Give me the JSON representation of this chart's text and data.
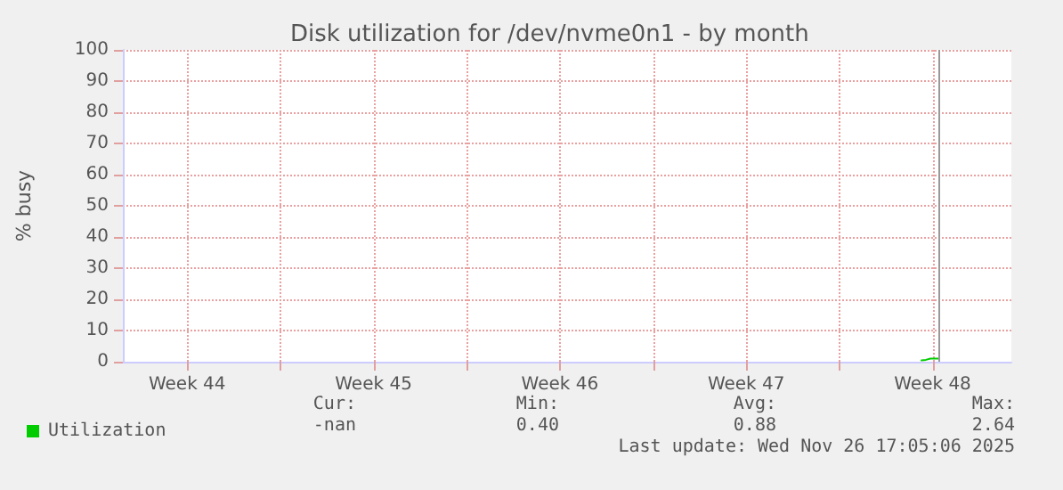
{
  "chart_data": {
    "type": "line",
    "title": "Disk utilization for /dev/nvme0n1 - by month",
    "ylabel": "% busy",
    "x": [
      "2025-11-27T02:00",
      "2025-11-27T06:00",
      "2025-11-27T10:00",
      "2025-11-27T14:00",
      "2025-11-27T17:00"
    ],
    "series": [
      {
        "name": "Utilization",
        "color": "#00cc00",
        "values": [
          0.4,
          0.6,
          1.0,
          1.0,
          1.0
        ]
      }
    ],
    "xlim": [
      "2025-10-28T02:00",
      "2025-11-30T11:00"
    ],
    "xticks": [
      {
        "value": "2025-10-30T12:00",
        "label": "Week 44"
      },
      {
        "value": "2025-11-03",
        "label": null
      },
      {
        "value": "2025-11-06T12:00",
        "label": "Week 45"
      },
      {
        "value": "2025-11-10",
        "label": null
      },
      {
        "value": "2025-11-13T12:00",
        "label": "Week 46"
      },
      {
        "value": "2025-11-17",
        "label": null
      },
      {
        "value": "2025-11-20T12:00",
        "label": "Week 47"
      },
      {
        "value": "2025-11-24",
        "label": null
      },
      {
        "value": "2025-11-27T12:00",
        "label": "Week 48"
      }
    ],
    "ylim": [
      0,
      100
    ],
    "yticks": [
      0,
      10,
      20,
      30,
      40,
      50,
      60,
      70,
      80,
      90,
      100
    ],
    "grid": true,
    "legend": "bottom left",
    "marker": "none",
    "line_style": "solid",
    "ref_lines": [
      {
        "axis": "x",
        "value": "2025-11-27T18:00",
        "label": null,
        "color": "#999999"
      }
    ],
    "annotations": [
      "Cur:",
      "Min:",
      "Avg:",
      "Max:",
      "-nan",
      "0.40",
      "0.88",
      "2.64",
      "Last update: Wed Nov 26 17:05:06 2025"
    ]
  }
}
